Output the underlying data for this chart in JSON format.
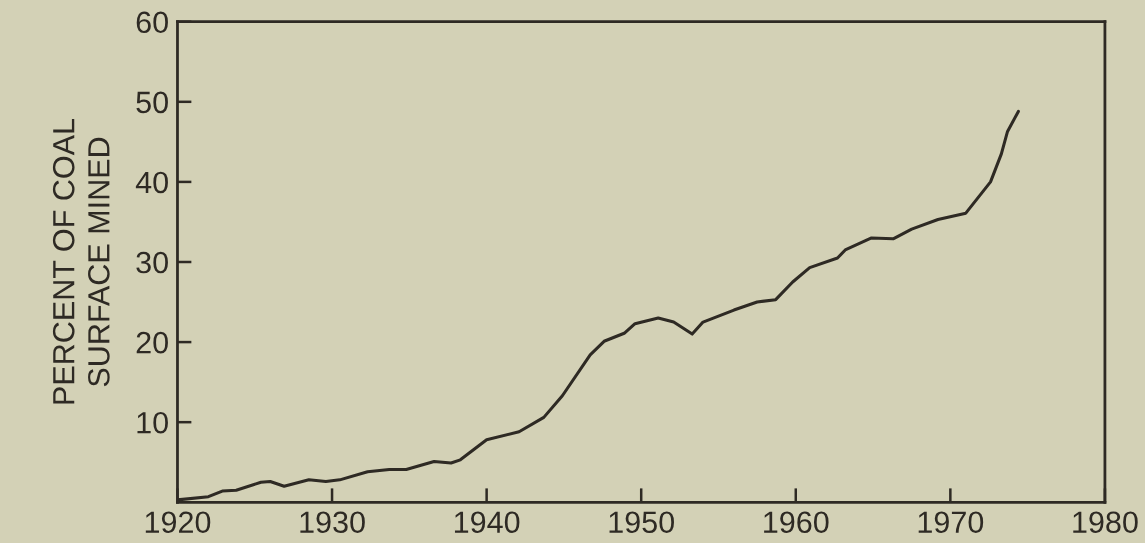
{
  "chart_data": {
    "type": "line",
    "ylabel": "PERCENT OF COAL\nSURFACE MINED",
    "x": [
      1920,
      1922.0,
      1922.9,
      1923.8,
      1925.4,
      1926,
      1926.9,
      1928.5,
      1929.6,
      1930.5,
      1932.3,
      1933.7,
      1934.8,
      1935.7,
      1936.6,
      1937.7,
      1938.3,
      1940,
      1942.1,
      1943.7,
      1944.9,
      1946.7,
      1947.6,
      1948.9,
      1949.6,
      1951.1,
      1952.1,
      1953.3,
      1954.0,
      1956,
      1957.5,
      1958.7,
      1959.8,
      1960.9,
      1962.7,
      1963.2,
      1964.9,
      1966.3,
      1967.5,
      1969.2,
      1971.0,
      1972.6,
      1973.3,
      1973.7,
      1974.4
    ],
    "series": [
      {
        "color": "#2e2a24",
        "values": [
          0.3,
          0.7,
          1.4,
          1.5,
          2.5,
          2.6,
          2.0,
          2.8,
          2.6,
          2.8,
          3.8,
          4.1,
          4.1,
          4.6,
          5.1,
          4.9,
          5.3,
          7.8,
          8.8,
          10.6,
          13.3,
          18.4,
          20.1,
          21.1,
          22.3,
          23.0,
          22.5,
          21.0,
          22.5,
          24,
          25,
          25.3,
          27.5,
          29.3,
          30.5,
          31.5,
          33.0,
          32.9,
          34.1,
          35.3,
          36.1,
          40,
          43.5,
          46.3,
          48.8
        ]
      }
    ],
    "xlim": [
      1920,
      1980
    ],
    "xticks": [
      1920,
      1930,
      1940,
      1950,
      1960,
      1970,
      1980
    ],
    "ylim": [
      0,
      60
    ],
    "yticks": [
      10,
      20,
      30,
      40,
      50,
      60
    ],
    "grid": false,
    "marker": "none",
    "line_style": "solid"
  }
}
